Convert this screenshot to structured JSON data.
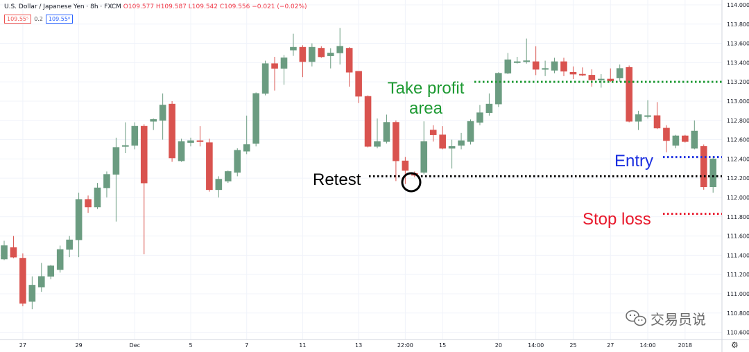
{
  "header": {
    "symbol": "U.S. Dollar / Japanese Yen · 8h · FXCM",
    "ohlc": "O109.577 H109.587 L109.542 C109.556 −0.021 (−0.02%)",
    "sell_price": "109.55⁵",
    "spread": "0.2",
    "buy_price": "109.55⁸"
  },
  "watermark": "交易员说",
  "annotations": {
    "take_profit": [
      "Take profit",
      "area"
    ],
    "retest": "Retest",
    "entry": "Entry",
    "stop_loss": "Stop loss"
  },
  "colors": {
    "up": "#6b9c81",
    "down": "#d9534f",
    "take_profit": "#1e9a33",
    "retest": "#000000",
    "entry": "#1a2ee0",
    "stop_loss": "#e8192c"
  },
  "chart_data": {
    "type": "candlestick",
    "price_axis": {
      "range": [
        110.525,
        114.05
      ],
      "ticks": [
        "114.000",
        "113.800",
        "113.600",
        "113.400",
        "113.200",
        "113.000",
        "112.800",
        "112.600",
        "112.400",
        "112.200",
        "112.000",
        "111.800",
        "111.600",
        "111.400",
        "111.200",
        "111.000",
        "110.800",
        "110.600"
      ]
    },
    "time_labels": [
      {
        "label": "27",
        "index": 2
      },
      {
        "label": "29",
        "index": 8
      },
      {
        "label": "Dec",
        "index": 14
      },
      {
        "label": "5",
        "index": 20
      },
      {
        "label": "7",
        "index": 26
      },
      {
        "label": "11",
        "index": 32
      },
      {
        "label": "13",
        "index": 38
      },
      {
        "label": "22:00",
        "index": 43
      },
      {
        "label": "15",
        "index": 47
      },
      {
        "label": "20",
        "index": 53
      },
      {
        "label": "14:00",
        "index": 57
      },
      {
        "label": "25",
        "index": 61
      },
      {
        "label": "27",
        "index": 65
      },
      {
        "label": "14:00",
        "index": 69
      },
      {
        "label": "2018",
        "index": 73
      }
    ],
    "candles": [
      {
        "o": 111.36,
        "h": 111.55,
        "l": 111.35,
        "c": 111.5
      },
      {
        "o": 111.48,
        "h": 111.6,
        "l": 111.37,
        "c": 111.38
      },
      {
        "o": 111.37,
        "h": 111.42,
        "l": 110.87,
        "c": 110.9
      },
      {
        "o": 110.92,
        "h": 111.18,
        "l": 110.84,
        "c": 111.09
      },
      {
        "o": 111.07,
        "h": 111.32,
        "l": 111.02,
        "c": 111.18
      },
      {
        "o": 111.18,
        "h": 111.3,
        "l": 111.15,
        "c": 111.29
      },
      {
        "o": 111.25,
        "h": 111.5,
        "l": 111.22,
        "c": 111.46
      },
      {
        "o": 111.46,
        "h": 111.6,
        "l": 111.38,
        "c": 111.56
      },
      {
        "o": 111.56,
        "h": 112.05,
        "l": 111.38,
        "c": 111.98
      },
      {
        "o": 111.98,
        "h": 112.02,
        "l": 111.84,
        "c": 111.9
      },
      {
        "o": 111.9,
        "h": 112.15,
        "l": 111.88,
        "c": 112.1
      },
      {
        "o": 112.1,
        "h": 112.27,
        "l": 112.0,
        "c": 112.24
      },
      {
        "o": 112.24,
        "h": 112.62,
        "l": 111.75,
        "c": 112.52
      },
      {
        "o": 112.53,
        "h": 112.78,
        "l": 112.46,
        "c": 112.54
      },
      {
        "o": 112.54,
        "h": 112.78,
        "l": 112.5,
        "c": 112.74
      },
      {
        "o": 112.74,
        "h": 112.76,
        "l": 111.41,
        "c": 112.15
      },
      {
        "o": 112.79,
        "h": 112.82,
        "l": 112.7,
        "c": 112.81
      },
      {
        "o": 112.8,
        "h": 113.08,
        "l": 112.6,
        "c": 112.96
      },
      {
        "o": 112.97,
        "h": 113.0,
        "l": 112.37,
        "c": 112.41
      },
      {
        "o": 112.38,
        "h": 112.61,
        "l": 112.37,
        "c": 112.58
      },
      {
        "o": 112.57,
        "h": 112.62,
        "l": 112.53,
        "c": 112.59
      },
      {
        "o": 112.59,
        "h": 112.74,
        "l": 112.53,
        "c": 112.58
      },
      {
        "o": 112.57,
        "h": 112.61,
        "l": 112.06,
        "c": 112.08
      },
      {
        "o": 112.08,
        "h": 112.22,
        "l": 112.0,
        "c": 112.19
      },
      {
        "o": 112.17,
        "h": 112.28,
        "l": 112.15,
        "c": 112.27
      },
      {
        "o": 112.26,
        "h": 112.51,
        "l": 112.22,
        "c": 112.49
      },
      {
        "o": 112.48,
        "h": 112.85,
        "l": 112.45,
        "c": 112.55
      },
      {
        "o": 112.56,
        "h": 113.09,
        "l": 112.53,
        "c": 113.08
      },
      {
        "o": 113.08,
        "h": 113.42,
        "l": 113.06,
        "c": 113.39
      },
      {
        "o": 113.39,
        "h": 113.46,
        "l": 113.11,
        "c": 113.34
      },
      {
        "o": 113.34,
        "h": 113.48,
        "l": 113.17,
        "c": 113.45
      },
      {
        "o": 113.53,
        "h": 113.7,
        "l": 113.47,
        "c": 113.56
      },
      {
        "o": 113.56,
        "h": 113.58,
        "l": 113.25,
        "c": 113.41
      },
      {
        "o": 113.41,
        "h": 113.6,
        "l": 113.36,
        "c": 113.56
      },
      {
        "o": 113.55,
        "h": 113.57,
        "l": 113.45,
        "c": 113.46
      },
      {
        "o": 113.47,
        "h": 113.55,
        "l": 113.34,
        "c": 113.5
      },
      {
        "o": 113.5,
        "h": 113.76,
        "l": 113.38,
        "c": 113.57
      },
      {
        "o": 113.55,
        "h": 113.56,
        "l": 113.15,
        "c": 113.3
      },
      {
        "o": 113.31,
        "h": 113.31,
        "l": 112.98,
        "c": 113.05
      },
      {
        "o": 113.05,
        "h": 113.06,
        "l": 112.52,
        "c": 112.53
      },
      {
        "o": 112.53,
        "h": 112.82,
        "l": 112.51,
        "c": 112.58
      },
      {
        "o": 112.58,
        "h": 112.86,
        "l": 112.56,
        "c": 112.78
      },
      {
        "o": 112.78,
        "h": 112.8,
        "l": 112.17,
        "c": 112.38
      },
      {
        "o": 112.38,
        "h": 112.42,
        "l": 112.14,
        "c": 112.28
      },
      {
        "o": 112.25,
        "h": 112.27,
        "l": 112.21,
        "c": 112.23
      },
      {
        "o": 112.26,
        "h": 112.79,
        "l": 112.24,
        "c": 112.58
      },
      {
        "o": 112.7,
        "h": 112.75,
        "l": 112.58,
        "c": 112.65
      },
      {
        "o": 112.65,
        "h": 112.74,
        "l": 112.5,
        "c": 112.51
      },
      {
        "o": 112.51,
        "h": 112.6,
        "l": 112.3,
        "c": 112.53
      },
      {
        "o": 112.54,
        "h": 112.67,
        "l": 112.5,
        "c": 112.59
      },
      {
        "o": 112.58,
        "h": 112.81,
        "l": 112.55,
        "c": 112.79
      },
      {
        "o": 112.78,
        "h": 112.96,
        "l": 112.75,
        "c": 112.88
      },
      {
        "o": 112.88,
        "h": 113.08,
        "l": 112.85,
        "c": 112.97
      },
      {
        "o": 112.97,
        "h": 113.3,
        "l": 112.94,
        "c": 113.29
      },
      {
        "o": 113.29,
        "h": 113.5,
        "l": 113.28,
        "c": 113.43
      },
      {
        "o": 113.4,
        "h": 113.46,
        "l": 113.39,
        "c": 113.41
      },
      {
        "o": 113.41,
        "h": 113.65,
        "l": 113.39,
        "c": 113.42
      },
      {
        "o": 113.41,
        "h": 113.57,
        "l": 113.27,
        "c": 113.33
      },
      {
        "o": 113.33,
        "h": 113.42,
        "l": 113.26,
        "c": 113.34
      },
      {
        "o": 113.32,
        "h": 113.45,
        "l": 113.29,
        "c": 113.41
      },
      {
        "o": 113.41,
        "h": 113.45,
        "l": 113.26,
        "c": 113.31
      },
      {
        "o": 113.3,
        "h": 113.36,
        "l": 113.23,
        "c": 113.28
      },
      {
        "o": 113.28,
        "h": 113.35,
        "l": 113.26,
        "c": 113.27
      },
      {
        "o": 113.27,
        "h": 113.33,
        "l": 113.15,
        "c": 113.22
      },
      {
        "o": 113.22,
        "h": 113.28,
        "l": 113.14,
        "c": 113.23
      },
      {
        "o": 113.23,
        "h": 113.34,
        "l": 113.2,
        "c": 113.21
      },
      {
        "o": 113.24,
        "h": 113.38,
        "l": 113.2,
        "c": 113.34
      },
      {
        "o": 113.35,
        "h": 113.37,
        "l": 112.78,
        "c": 112.79
      },
      {
        "o": 112.79,
        "h": 112.9,
        "l": 112.7,
        "c": 112.86
      },
      {
        "o": 112.84,
        "h": 113.01,
        "l": 112.82,
        "c": 112.85
      },
      {
        "o": 112.85,
        "h": 112.99,
        "l": 112.71,
        "c": 112.72
      },
      {
        "o": 112.72,
        "h": 112.75,
        "l": 112.47,
        "c": 112.59
      },
      {
        "o": 112.54,
        "h": 112.65,
        "l": 112.51,
        "c": 112.64
      },
      {
        "o": 112.64,
        "h": 112.65,
        "l": 112.57,
        "c": 112.58
      },
      {
        "o": 112.51,
        "h": 112.8,
        "l": 112.5,
        "c": 112.69
      },
      {
        "o": 112.53,
        "h": 112.55,
        "l": 112.08,
        "c": 112.11
      },
      {
        "o": 112.11,
        "h": 112.43,
        "l": 112.05,
        "c": 112.4
      }
    ],
    "levels": {
      "take_profit": 113.2,
      "retest": 112.22,
      "entry": 112.42,
      "stop_loss": 111.83
    }
  }
}
